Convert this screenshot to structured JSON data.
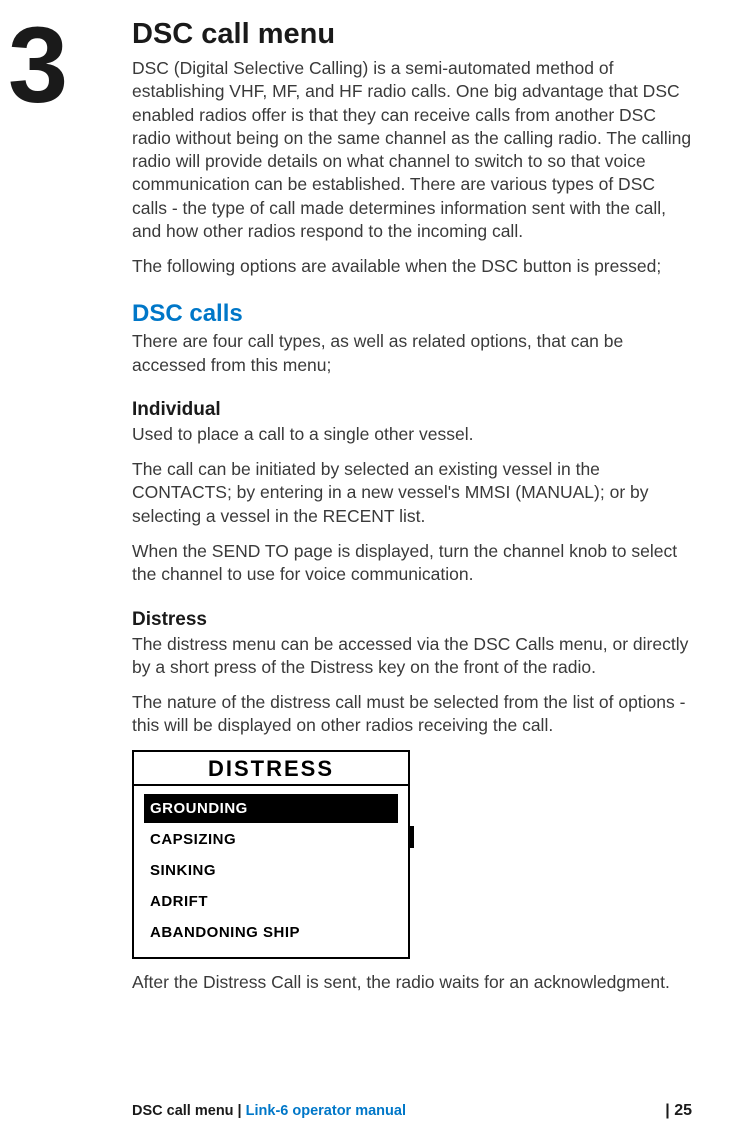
{
  "chapter_number": "3",
  "page_title": "DSC call menu",
  "intro_p1": "DSC (Digital Selective Calling) is a semi-automated method of establishing VHF, MF, and HF radio calls. One big advantage that DSC enabled radios offer is that they can receive calls from another DSC radio without being on the same channel as the calling radio. The calling radio will provide details on what channel to switch to so that voice communication can be established. There are various types of DSC calls - the type of call made determines information sent with the call, and how other radios respond to the incoming call.",
  "intro_p2": "The following options are available when the DSC button is pressed;",
  "section_calls_title": "DSC calls",
  "section_calls_intro": "There are four call types, as well as related options, that can be accessed from this menu;",
  "individual_title": "Individual",
  "individual_p1": "Used to place a call to a single other vessel.",
  "individual_p2": "The call can be initiated by selected an existing vessel in the CONTACTS; by entering in a new vessel's MMSI (MANUAL); or by selecting a vessel in the RECENT list.",
  "individual_p3": "When the SEND TO page is displayed, turn the channel knob to select the channel to use for voice communication.",
  "distress_title": "Distress",
  "distress_p1": "The distress menu can be accessed via the DSC Calls menu, or directly by a short press of the Distress key on the front of the radio.",
  "distress_p2": "The nature of the distress call must be selected from the list of options - this will be displayed on other radios receiving the call.",
  "distress_menu": {
    "title": "DISTRESS",
    "items": [
      "GROUNDING",
      "CAPSIZING",
      "SINKING",
      "ADRIFT",
      "ABANDONING SHIP"
    ],
    "selected_index": 0,
    "border_color": "#000000",
    "bg_color": "#ffffff",
    "selected_bg": "#000000",
    "selected_fg": "#ffffff",
    "title_font_size": 22,
    "item_font_size": 15
  },
  "distress_p3": "After the Distress Call is sent, the radio waits for an acknowledgment.",
  "footer": {
    "section": "DSC call menu",
    "separator": " | ",
    "manual": "Link-6 operator manual",
    "page_label": "| 25"
  },
  "colors": {
    "accent_blue": "#0077c8",
    "body_text": "#3a3a3a",
    "heading_text": "#1a1a1a",
    "background": "#ffffff"
  }
}
